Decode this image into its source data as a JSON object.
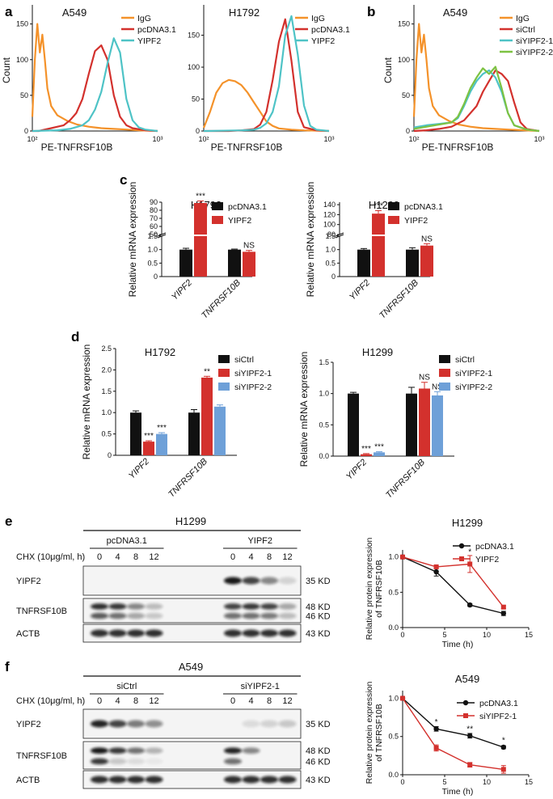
{
  "colors": {
    "orange": "#F4922A",
    "red": "#D3312D",
    "cyan": "#4EC3C6",
    "green": "#7DC242",
    "black": "#111111",
    "blue": "#6EA0D8"
  },
  "panels": {
    "a": "a",
    "b": "b",
    "c": "c",
    "d": "d",
    "e": "e",
    "f": "f"
  },
  "flow": [
    {
      "id": "flow-a1",
      "title": "A549",
      "xlabel": "PE-TNFRSF10B",
      "ylabel": "Count",
      "xticks": [
        "10²",
        "10³"
      ],
      "yticks": [
        0,
        50,
        100,
        150
      ],
      "ylim": [
        0,
        170
      ],
      "series": [
        {
          "name": "IgG",
          "color": "#F4922A",
          "x": [
            0,
            0.02,
            0.04,
            0.06,
            0.08,
            0.1,
            0.12,
            0.15,
            0.2,
            0.28,
            0.36,
            0.45,
            0.55,
            0.65,
            0.75,
            0.85,
            1
          ],
          "y": [
            20,
            100,
            150,
            110,
            135,
            100,
            60,
            35,
            22,
            14,
            9,
            6,
            4,
            3,
            2,
            1,
            0
          ]
        },
        {
          "name": "pcDNA3.1",
          "color": "#D3312D",
          "x": [
            0,
            0.05,
            0.1,
            0.15,
            0.2,
            0.25,
            0.3,
            0.35,
            0.4,
            0.45,
            0.5,
            0.55,
            0.6,
            0.65,
            0.7,
            0.75,
            0.8,
            0.9,
            1
          ],
          "y": [
            0,
            0,
            2,
            4,
            6,
            8,
            15,
            25,
            45,
            80,
            112,
            120,
            100,
            50,
            20,
            8,
            4,
            1,
            0
          ]
        },
        {
          "name": "YIPF2",
          "color": "#4EC3C6",
          "x": [
            0,
            0.2,
            0.3,
            0.4,
            0.45,
            0.5,
            0.55,
            0.6,
            0.65,
            0.7,
            0.75,
            0.8,
            0.85,
            0.9,
            1
          ],
          "y": [
            0,
            1,
            3,
            8,
            15,
            30,
            55,
            95,
            130,
            110,
            45,
            15,
            5,
            2,
            0
          ]
        }
      ]
    },
    {
      "id": "flow-a2",
      "title": "H1792",
      "xlabel": "PE-TNFRSF10B",
      "ylabel": "",
      "xticks": [
        "10²",
        "10³"
      ],
      "yticks": [
        0,
        50,
        100,
        150
      ],
      "ylim": [
        0,
        190
      ],
      "series": [
        {
          "name": "IgG",
          "color": "#F4922A",
          "x": [
            0,
            0.05,
            0.1,
            0.15,
            0.2,
            0.25,
            0.3,
            0.35,
            0.4,
            0.45,
            0.5,
            0.55,
            0.6,
            0.7,
            0.8,
            1
          ],
          "y": [
            5,
            30,
            60,
            75,
            80,
            78,
            72,
            60,
            45,
            30,
            15,
            8,
            4,
            2,
            1,
            0
          ]
        },
        {
          "name": "pcDNA3.1",
          "color": "#D3312D",
          "x": [
            0,
            0.2,
            0.3,
            0.4,
            0.45,
            0.5,
            0.55,
            0.6,
            0.65,
            0.7,
            0.75,
            0.8,
            0.9,
            1
          ],
          "y": [
            0,
            0,
            1,
            3,
            10,
            30,
            80,
            140,
            175,
            110,
            30,
            6,
            1,
            0
          ]
        },
        {
          "name": "YIPF2",
          "color": "#4EC3C6",
          "x": [
            0,
            0.3,
            0.4,
            0.45,
            0.5,
            0.55,
            0.6,
            0.65,
            0.7,
            0.75,
            0.8,
            0.85,
            0.9,
            1
          ],
          "y": [
            0,
            1,
            2,
            5,
            12,
            30,
            70,
            150,
            180,
            120,
            40,
            8,
            2,
            0
          ]
        }
      ]
    },
    {
      "id": "flow-b",
      "title": "A549",
      "xlabel": "PE-TNFRSF10B",
      "ylabel": "Count",
      "xticks": [
        "10²",
        "10³"
      ],
      "yticks": [
        0,
        50,
        100,
        150
      ],
      "ylim": [
        0,
        170
      ],
      "series": [
        {
          "name": "IgG",
          "color": "#F4922A",
          "x": [
            0,
            0.02,
            0.04,
            0.06,
            0.08,
            0.1,
            0.12,
            0.15,
            0.2,
            0.28,
            0.36,
            0.45,
            0.55,
            0.65,
            0.75,
            1
          ],
          "y": [
            20,
            100,
            150,
            110,
            135,
            100,
            60,
            35,
            22,
            14,
            9,
            6,
            4,
            3,
            2,
            0
          ]
        },
        {
          "name": "siCtrl",
          "color": "#D3312D",
          "x": [
            0,
            0.1,
            0.2,
            0.3,
            0.4,
            0.5,
            0.55,
            0.6,
            0.65,
            0.7,
            0.75,
            0.8,
            0.85,
            0.9,
            1
          ],
          "y": [
            0,
            1,
            3,
            6,
            15,
            35,
            55,
            70,
            85,
            80,
            70,
            40,
            12,
            3,
            0
          ]
        },
        {
          "name": "siYIPF2-1",
          "color": "#4EC3C6",
          "x": [
            0,
            0.1,
            0.2,
            0.3,
            0.35,
            0.4,
            0.45,
            0.5,
            0.55,
            0.6,
            0.65,
            0.7,
            0.75,
            0.8,
            0.9,
            1
          ],
          "y": [
            5,
            8,
            10,
            12,
            18,
            35,
            55,
            70,
            80,
            85,
            75,
            55,
            25,
            8,
            2,
            0
          ]
        },
        {
          "name": "siYIPF2-2",
          "color": "#7DC242",
          "x": [
            0,
            0.1,
            0.2,
            0.3,
            0.35,
            0.4,
            0.45,
            0.5,
            0.55,
            0.6,
            0.65,
            0.7,
            0.75,
            0.8,
            0.9,
            1
          ],
          "y": [
            3,
            6,
            9,
            12,
            20,
            38,
            60,
            75,
            88,
            80,
            90,
            60,
            25,
            8,
            2,
            0
          ]
        }
      ]
    }
  ],
  "bars": [
    {
      "id": "bar-c1",
      "title": "H1792",
      "ylabel": "Relative mRNA expression",
      "groups": [
        "YIPF2",
        "TNFRSF10B"
      ],
      "series": [
        {
          "name": "pcDNA3.1",
          "color": "#111111",
          "values": [
            1.0,
            1.0
          ],
          "err": [
            0.05,
            0.02
          ]
        },
        {
          "name": "YIPF2",
          "color": "#D3312D",
          "values": [
            89.0,
            0.92
          ],
          "err": [
            2.5,
            0.05
          ]
        }
      ],
      "lower_ticks": [
        0,
        0.5,
        1.0,
        1.5
      ],
      "lower_labels": [
        "0",
        "0.5",
        "1.0",
        "1.5"
      ],
      "upper_range": [
        50,
        90
      ],
      "upper_ticks": [
        50,
        60,
        70,
        80,
        90
      ],
      "upper_labels": [
        "50",
        "60",
        "70",
        "80",
        "90"
      ],
      "sig": [
        "***",
        "NS"
      ]
    },
    {
      "id": "bar-c2",
      "title": "H1299",
      "ylabel": "Relative mRNA expression",
      "groups": [
        "YIPF2",
        "TNFRSF10B"
      ],
      "series": [
        {
          "name": "pcDNA3.1",
          "color": "#111111",
          "values": [
            1.0,
            1.0
          ],
          "err": [
            0.04,
            0.07
          ]
        },
        {
          "name": "YIPF2",
          "color": "#D3312D",
          "values": [
            122,
            1.15
          ],
          "err": [
            6,
            0.07
          ]
        }
      ],
      "lower_ticks": [
        0,
        0.5,
        1.0,
        1.5
      ],
      "lower_labels": [
        "0",
        "0.5",
        "1.0",
        "1.5"
      ],
      "upper_range": [
        80,
        145
      ],
      "upper_ticks": [
        80,
        100,
        120,
        140
      ],
      "upper_labels": [
        "80",
        "100",
        "120",
        "140"
      ],
      "sig": [
        "***",
        "NS"
      ]
    },
    {
      "id": "bar-d1",
      "title": "H1792",
      "ylabel": "Relative mRNA expression",
      "groups": [
        "YIPF2",
        "TNFRSF10B"
      ],
      "series": [
        {
          "name": "siCtrl",
          "color": "#111111",
          "values": [
            1.0,
            1.0
          ],
          "err": [
            0.04,
            0.07
          ]
        },
        {
          "name": "siYIPF2-1",
          "color": "#D3312D",
          "values": [
            0.32,
            1.82
          ],
          "err": [
            0.02,
            0.03
          ]
        },
        {
          "name": "siYIPF2-2",
          "color": "#6EA0D8",
          "values": [
            0.5,
            1.14
          ],
          "err": [
            0.03,
            0.04
          ]
        }
      ],
      "ylim": [
        0,
        2.5
      ],
      "yticks": [
        0,
        0.5,
        1.0,
        1.5,
        2.0,
        2.5
      ],
      "ylabels": [
        "0",
        "0.5",
        "1.0",
        "1.5",
        "2.0",
        "2.5"
      ],
      "sig": [
        [
          "",
          "***",
          "***"
        ],
        [
          "",
          "**",
          ""
        ]
      ]
    },
    {
      "id": "bar-d2",
      "title": "H1299",
      "ylabel": "Relative mRNA expression",
      "groups": [
        "YIPF2",
        "TNFRSF10B"
      ],
      "series": [
        {
          "name": "siCtrl",
          "color": "#111111",
          "values": [
            1.0,
            1.0
          ],
          "err": [
            0.02,
            0.1
          ]
        },
        {
          "name": "siYIPF2-1",
          "color": "#D3312D",
          "values": [
            0.03,
            1.08
          ],
          "err": [
            0.01,
            0.1
          ]
        },
        {
          "name": "siYIPF2-2",
          "color": "#6EA0D8",
          "values": [
            0.06,
            0.97
          ],
          "err": [
            0.01,
            0.06
          ]
        }
      ],
      "ylim": [
        0,
        1.5
      ],
      "yticks": [
        0,
        0.5,
        1.0,
        1.5
      ],
      "ylabels": [
        "0.0",
        "0.5",
        "1.0",
        "1.5"
      ],
      "sig": [
        [
          "",
          "***",
          "***"
        ],
        [
          "",
          "NS",
          "NS"
        ]
      ]
    }
  ],
  "lines": [
    {
      "id": "line-e",
      "title": "H1299",
      "xlabel": "Time (h)",
      "ylabel": [
        "Relative protein expression",
        "of TNFRSF10B"
      ],
      "xlim": [
        0,
        15
      ],
      "xticks": [
        0,
        5,
        10,
        15
      ],
      "ylim": [
        0,
        1.1
      ],
      "yticks": [
        0,
        0.5,
        1.0
      ],
      "ylabels": [
        "0.0",
        "0.5",
        "1.0"
      ],
      "series": [
        {
          "name": "pcDNA3.1",
          "color": "#111111",
          "marker": "circle",
          "x": [
            0,
            4,
            8,
            12
          ],
          "y": [
            1.0,
            0.79,
            0.32,
            0.2
          ],
          "err": [
            0,
            0.06,
            0.02,
            0.03
          ]
        },
        {
          "name": "YIPF2",
          "color": "#D3312D",
          "marker": "square",
          "x": [
            0,
            4,
            8,
            12
          ],
          "y": [
            1.0,
            0.86,
            0.9,
            0.29
          ],
          "err": [
            0,
            0.02,
            0.12,
            0.02
          ]
        }
      ],
      "annotations": [
        {
          "x": 8,
          "y": 1.07,
          "text": "*"
        }
      ]
    },
    {
      "id": "line-f",
      "title": "A549",
      "xlabel": "Time (h)",
      "ylabel": [
        "Relative protein expression",
        "of TNFRSF10B"
      ],
      "xlim": [
        0,
        15
      ],
      "xticks": [
        0,
        5,
        10,
        15
      ],
      "ylim": [
        0,
        1.1
      ],
      "yticks": [
        0,
        0.5,
        1.0
      ],
      "ylabels": [
        "0.0",
        "0.5",
        "1.0"
      ],
      "series": [
        {
          "name": "pcDNA3.1",
          "color": "#111111",
          "marker": "circle",
          "x": [
            0,
            4,
            8,
            12
          ],
          "y": [
            1.0,
            0.6,
            0.51,
            0.36
          ],
          "err": [
            0,
            0.03,
            0.03,
            0.02
          ]
        },
        {
          "name": "siYIPF2-1",
          "color": "#D3312D",
          "marker": "square",
          "x": [
            0,
            4,
            8,
            12
          ],
          "y": [
            1.0,
            0.35,
            0.13,
            0.07
          ],
          "err": [
            0,
            0.04,
            0.03,
            0.05
          ]
        }
      ],
      "annotations": [
        {
          "x": 4,
          "y": 0.69,
          "text": "*"
        },
        {
          "x": 8,
          "y": 0.6,
          "text": "**"
        },
        {
          "x": 12,
          "y": 0.45,
          "text": "*"
        }
      ]
    }
  ],
  "blots": [
    {
      "id": "blot-e",
      "title": "H1299",
      "groups": [
        "pcDNA3.1",
        "YIPF2"
      ],
      "chx_label": "CHX (10μg/ml, h)",
      "times": [
        "0",
        "4",
        "8",
        "12",
        "0",
        "4",
        "8",
        "12"
      ],
      "rows": [
        {
          "label": "YIPF2",
          "sizes": [
            "35 KD"
          ],
          "bands": [
            [
              0,
              0,
              0,
              0,
              1.0,
              0.8,
              0.5,
              0.15
            ]
          ]
        },
        {
          "label": "TNFRSF10B",
          "sizes": [
            "48 KD",
            "46 KD"
          ],
          "bands": [
            [
              0.9,
              0.85,
              0.5,
              0.25,
              0.8,
              0.85,
              0.8,
              0.35
            ],
            [
              0.7,
              0.6,
              0.35,
              0.2,
              0.6,
              0.6,
              0.55,
              0.25
            ]
          ]
        },
        {
          "label": "ACTB",
          "sizes": [
            "43 KD"
          ],
          "bands": [
            [
              0.9,
              0.9,
              0.9,
              0.9,
              0.9,
              0.9,
              0.9,
              0.9
            ]
          ]
        }
      ]
    },
    {
      "id": "blot-f",
      "title": "A549",
      "groups": [
        "siCtrl",
        "siYIPF2-1"
      ],
      "chx_label": "CHX (10μg/ml, h)",
      "times": [
        "0",
        "4",
        "8",
        "12",
        "0",
        "4",
        "8",
        "12"
      ],
      "rows": [
        {
          "label": "YIPF2",
          "sizes": [
            "35 KD"
          ],
          "bands": [
            [
              0.95,
              0.8,
              0.55,
              0.45,
              0,
              0.1,
              0.15,
              0.2
            ]
          ]
        },
        {
          "label": "TNFRSF10B",
          "sizes": [
            "48 KD",
            "46 KD"
          ],
          "bands": [
            [
              1.0,
              0.85,
              0.6,
              0.3,
              0.95,
              0.5,
              0,
              0
            ],
            [
              0.85,
              0.2,
              0.1,
              0.05,
              0.6,
              0,
              0,
              0
            ]
          ]
        },
        {
          "label": "ACTB",
          "sizes": [
            "43 KD"
          ],
          "bands": [
            [
              0.9,
              0.9,
              0.9,
              0.9,
              0.9,
              0.9,
              0.9,
              0.9
            ]
          ]
        }
      ]
    }
  ]
}
